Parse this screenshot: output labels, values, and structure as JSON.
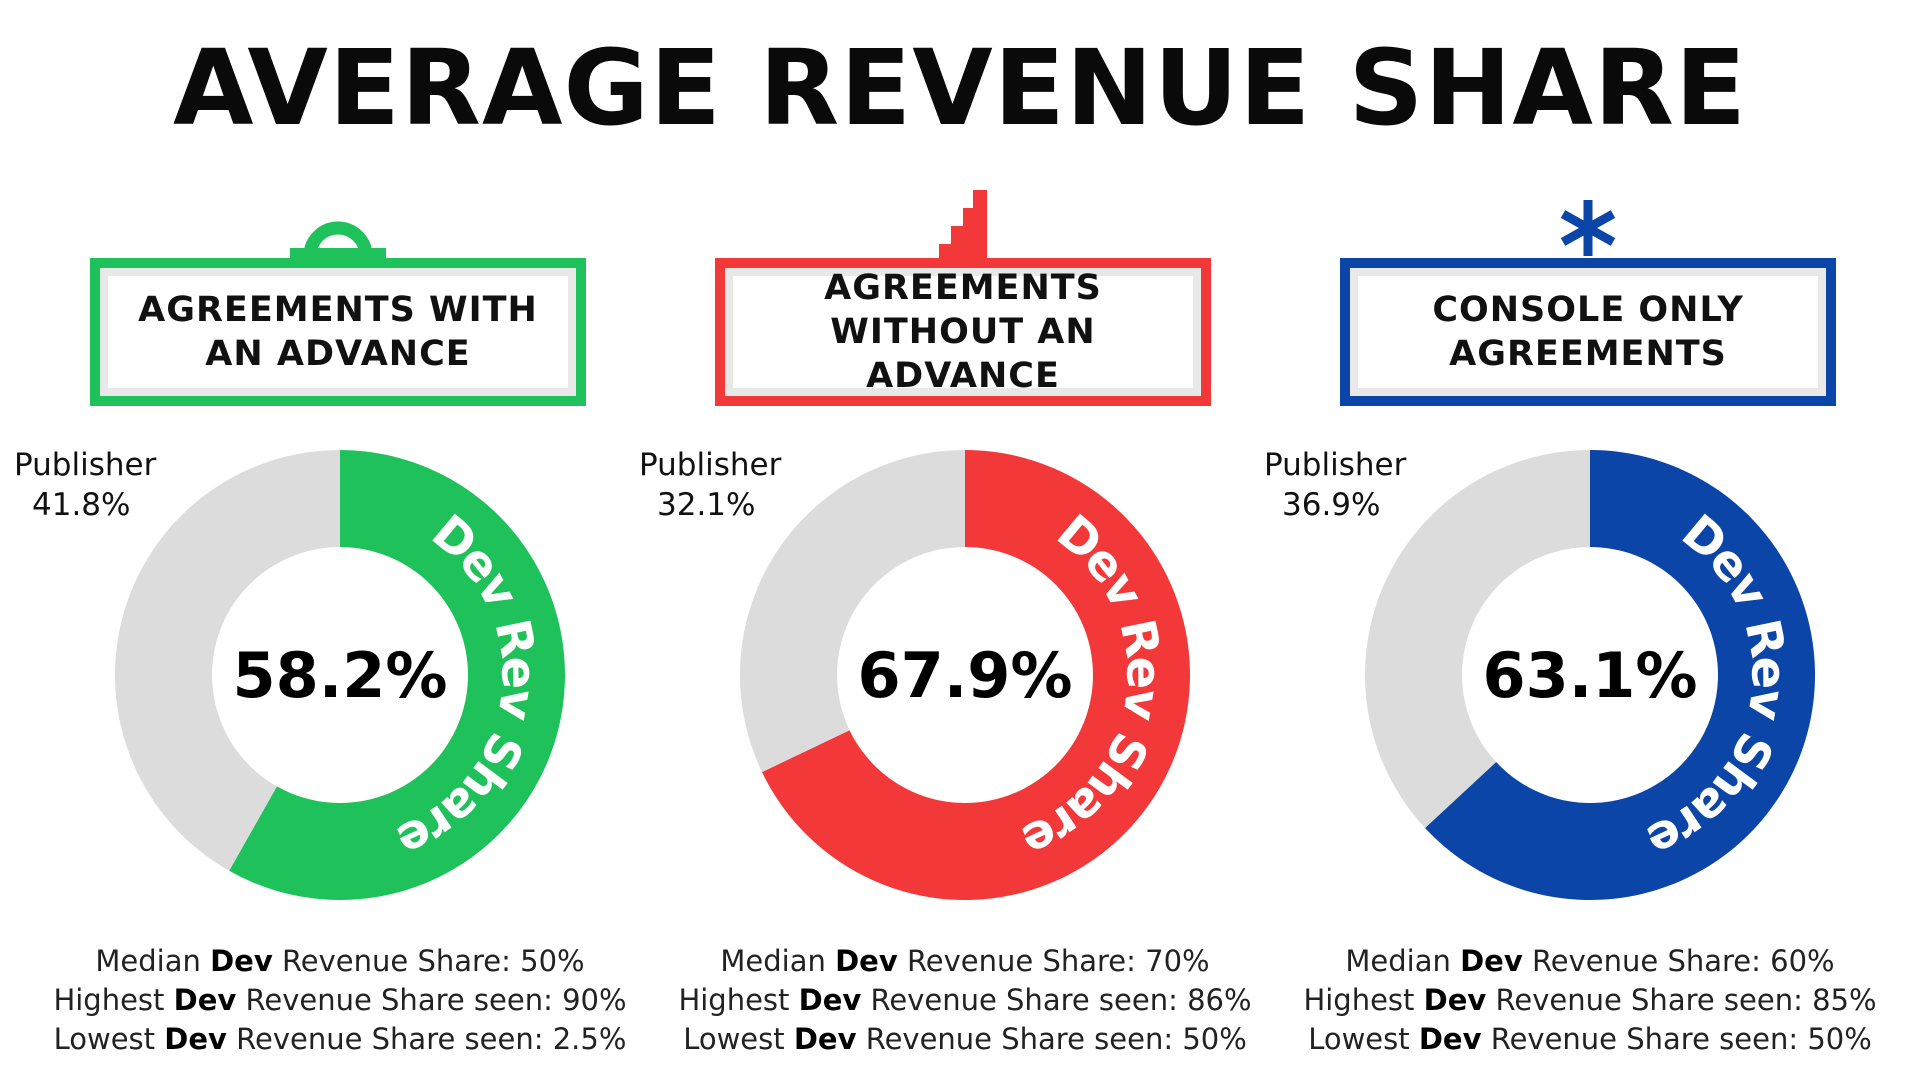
{
  "title": "AVERAGE REVENUE SHARE",
  "chart_data": [
    {
      "type": "pie",
      "title": "AGREEMENTS WITH AN ADVANCE",
      "color": "#1fc25a",
      "slices": [
        {
          "label": "Dev Rev Share",
          "value": 58.2,
          "display": "58.2%"
        },
        {
          "label": "Publisher",
          "value": 41.8,
          "display": "41.8%"
        }
      ],
      "stats": [
        {
          "pre": "Median ",
          "bold": "Dev",
          "post": " Revenue Share: 50%"
        },
        {
          "pre": "Highest ",
          "bold": "Dev",
          "post": " Revenue Share seen: 90%"
        },
        {
          "pre": "Lowest ",
          "bold": "Dev",
          "post": " Revenue Share seen: 2.5%"
        }
      ]
    },
    {
      "type": "pie",
      "title": "AGREEMENTS WITHOUT AN ADVANCE",
      "color": "#f23838",
      "slices": [
        {
          "label": "Dev Rev Share",
          "value": 67.9,
          "display": "67.9%"
        },
        {
          "label": "Publisher",
          "value": 32.1,
          "display": "32.1%"
        }
      ],
      "stats": [
        {
          "pre": "Median ",
          "bold": "Dev",
          "post": " Revenue Share: 70%"
        },
        {
          "pre": "Highest ",
          "bold": "Dev",
          "post": " Revenue Share seen: 86%"
        },
        {
          "pre": "Lowest ",
          "bold": "Dev",
          "post": " Revenue Share seen: 50%"
        }
      ]
    },
    {
      "type": "pie",
      "title": "CONSOLE ONLY AGREEMENTS",
      "color": "#0b45a8",
      "slices": [
        {
          "label": "Dev Rev Share",
          "value": 63.1,
          "display": "63.1%"
        },
        {
          "label": "Publisher",
          "value": 36.9,
          "display": "36.9%"
        }
      ],
      "stats": [
        {
          "pre": "Median ",
          "bold": "Dev",
          "post": " Revenue Share: 60%"
        },
        {
          "pre": "Highest ",
          "bold": "Dev",
          "post": " Revenue Share seen: 85%"
        },
        {
          "pre": "Lowest ",
          "bold": "Dev",
          "post": " Revenue Share seen: 50%"
        }
      ]
    }
  ],
  "colors": {
    "publisher": "#dcdcdc",
    "card_inner": "#e8e8e8"
  },
  "icons": [
    "ring-handle-icon",
    "pixel-steps-icon",
    "asterisk-icon"
  ]
}
